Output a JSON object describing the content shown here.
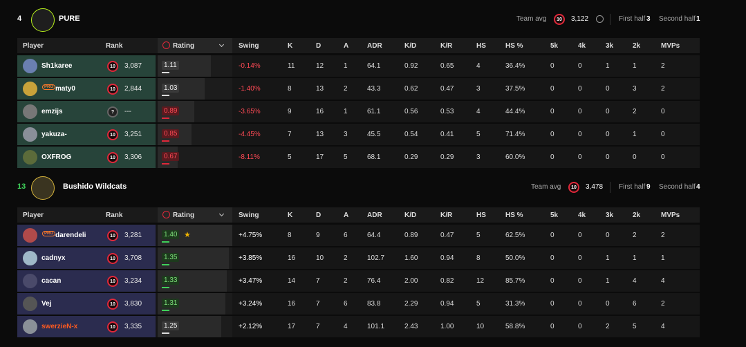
{
  "teams": [
    {
      "score": "4",
      "score_color": "#ffffff",
      "name": "PURE",
      "row_color": "#27443a",
      "team_avg_label": "Team avg",
      "team_avg_badge": "10",
      "team_avg": "3,122",
      "first_half_label": "First half",
      "first_half": "3",
      "second_half_label": "Second half",
      "second_half": "1",
      "columns": [
        "Player",
        "Rank",
        "Rating",
        "Swing",
        "K",
        "D",
        "A",
        "ADR",
        "K/D",
        "K/R",
        "HS",
        "HS %",
        "5k",
        "4k",
        "3k",
        "2k",
        "MVPs"
      ],
      "players": [
        {
          "name": "Sh1karee",
          "rank_badge": "10",
          "elo": "3,087",
          "rating": "1.11",
          "swing": "-0.14%",
          "stats": [
            "11",
            "12",
            "1",
            "64.1",
            "0.92",
            "0.65",
            "4",
            "36.4%",
            "0",
            "0",
            "1",
            "1",
            "2"
          ]
        },
        {
          "name": "maty0",
          "pro_badge": "PRO",
          "rank_badge": "10",
          "elo": "2,844",
          "rating": "1.03",
          "swing": "-1.40%",
          "stats": [
            "8",
            "13",
            "2",
            "43.3",
            "0.62",
            "0.47",
            "3",
            "37.5%",
            "0",
            "0",
            "0",
            "3",
            "2"
          ]
        },
        {
          "name": "emzijs",
          "rank_badge": "?",
          "elo": "---",
          "rating": "0.89",
          "swing": "-3.65%",
          "stats": [
            "9",
            "16",
            "1",
            "61.1",
            "0.56",
            "0.53",
            "4",
            "44.4%",
            "0",
            "0",
            "0",
            "2",
            "0"
          ]
        },
        {
          "name": "yakuza-",
          "rank_badge": "10",
          "elo": "3,251",
          "rating": "0.85",
          "swing": "-4.45%",
          "stats": [
            "7",
            "13",
            "3",
            "45.5",
            "0.54",
            "0.41",
            "5",
            "71.4%",
            "0",
            "0",
            "0",
            "1",
            "0"
          ]
        },
        {
          "name": "OXFROG",
          "rank_badge": "10",
          "elo": "3,306",
          "rating": "0.67",
          "swing": "-8.11%",
          "stats": [
            "5",
            "17",
            "5",
            "68.1",
            "0.29",
            "0.29",
            "3",
            "60.0%",
            "0",
            "0",
            "0",
            "0",
            "0"
          ]
        }
      ]
    },
    {
      "score": "13",
      "score_color": "#3fd15a",
      "name": "Bushido Wildcats",
      "row_color": "#2b2c4f",
      "team_avg_label": "Team avg",
      "team_avg_badge": "10",
      "team_avg": "3,478",
      "first_half_label": "First half",
      "first_half": "9",
      "second_half_label": "Second half",
      "second_half": "4",
      "columns": [
        "Player",
        "Rank",
        "Rating",
        "Swing",
        "K",
        "D",
        "A",
        "ADR",
        "K/D",
        "K/R",
        "HS",
        "HS %",
        "5k",
        "4k",
        "3k",
        "2k",
        "MVPs"
      ],
      "players": [
        {
          "name": "darendeli",
          "pro_badge": "PRO",
          "star": true,
          "rank_badge": "10",
          "elo": "3,281",
          "rating": "1.40",
          "swing": "+4.75%",
          "stats": [
            "8",
            "9",
            "6",
            "64.4",
            "0.89",
            "0.47",
            "5",
            "62.5%",
            "0",
            "0",
            "0",
            "2",
            "2"
          ]
        },
        {
          "name": "cadnyx",
          "rank_badge": "10",
          "elo": "3,708",
          "rating": "1.35",
          "swing": "+3.85%",
          "stats": [
            "16",
            "10",
            "2",
            "102.7",
            "1.60",
            "0.94",
            "8",
            "50.0%",
            "0",
            "0",
            "1",
            "1",
            "1"
          ]
        },
        {
          "name": "cacan",
          "rank_badge": "10",
          "elo": "3,234",
          "rating": "1.33",
          "swing": "+3.47%",
          "stats": [
            "14",
            "7",
            "2",
            "76.4",
            "2.00",
            "0.82",
            "12",
            "85.7%",
            "0",
            "0",
            "1",
            "4",
            "4"
          ]
        },
        {
          "name": "Vej",
          "rank_badge": "10",
          "elo": "3,830",
          "rating": "1.31",
          "swing": "+3.24%",
          "stats": [
            "16",
            "7",
            "6",
            "83.8",
            "2.29",
            "0.94",
            "5",
            "31.3%",
            "0",
            "0",
            "0",
            "6",
            "2"
          ]
        },
        {
          "name": "swerzieN-x",
          "name_color": "#ff5a1f",
          "rank_badge": "10",
          "elo": "3,335",
          "rating": "1.25",
          "swing": "+2.12%",
          "stats": [
            "17",
            "7",
            "4",
            "101.1",
            "2.43",
            "1.00",
            "10",
            "58.8%",
            "0",
            "0",
            "2",
            "5",
            "4"
          ]
        }
      ]
    }
  ]
}
